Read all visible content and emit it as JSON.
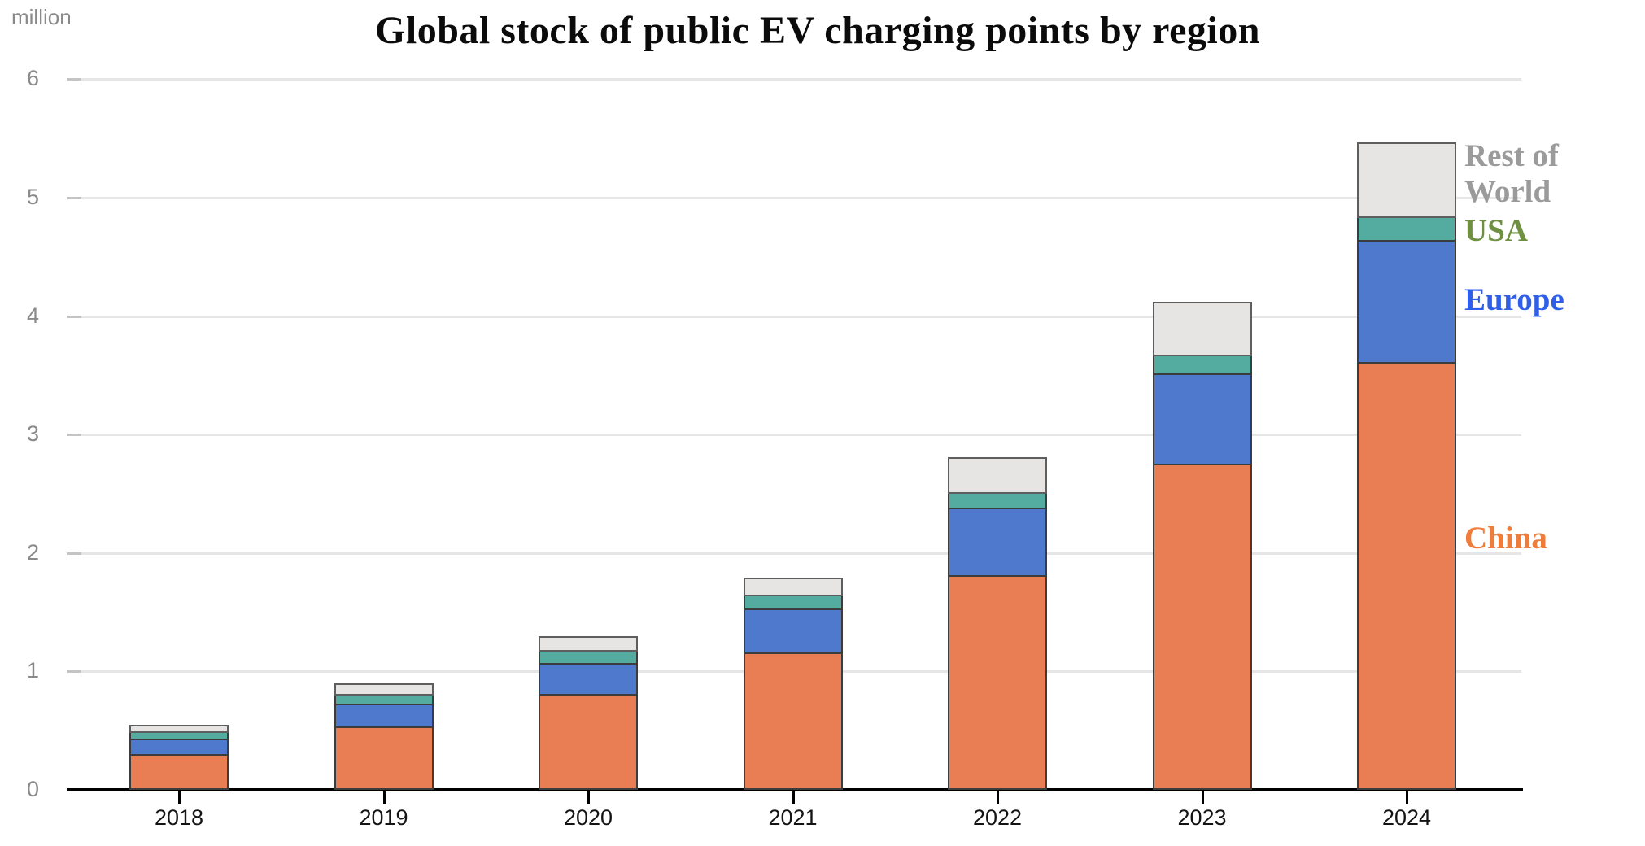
{
  "header": {
    "unit_label": "million",
    "title": "Global stock of public EV charging points by region"
  },
  "chart_data": {
    "type": "bar",
    "stacked": true,
    "title": "Global stock of public EV charging points by region",
    "ylabel": "million",
    "xlabel": "",
    "ylim": [
      0,
      6
    ],
    "yticks": [
      0,
      1,
      2,
      3,
      4,
      5,
      6
    ],
    "grid": "horizontal",
    "legend_position": "right-of-last-bar",
    "categories": [
      "2018",
      "2019",
      "2020",
      "2021",
      "2022",
      "2023",
      "2024"
    ],
    "series": [
      {
        "name": "China",
        "color": "#E97E54",
        "edge_color": "#3C3C3C",
        "values": [
          0.29,
          0.52,
          0.8,
          1.15,
          1.8,
          2.74,
          3.6
        ]
      },
      {
        "name": "Europe",
        "color": "#4E79CC",
        "edge_color": "#3C3C3C",
        "values": [
          0.13,
          0.19,
          0.26,
          0.37,
          0.57,
          0.76,
          1.03
        ]
      },
      {
        "name": "USA",
        "color": "#54ABA0",
        "edge_color": "#3C3C3C",
        "values": [
          0.06,
          0.08,
          0.11,
          0.12,
          0.13,
          0.16,
          0.2
        ]
      },
      {
        "name": "Rest of World",
        "color": "#E7E5E4",
        "edge_color": "#5E5E5E",
        "values": [
          0.07,
          0.1,
          0.13,
          0.16,
          0.31,
          0.46,
          0.64
        ]
      }
    ],
    "totals": [
      0.55,
      0.89,
      1.3,
      1.8,
      2.81,
      4.12,
      5.47
    ]
  },
  "legend": {
    "rest_of_world": {
      "line1": "Rest of",
      "line2": "World",
      "color": "#9B9B9B"
    },
    "usa": {
      "label": "USA",
      "color": "#6E9040"
    },
    "europe": {
      "label": "Europe",
      "color": "#2F5FE8"
    },
    "china": {
      "label": "China",
      "color": "#EE7C3B"
    }
  }
}
